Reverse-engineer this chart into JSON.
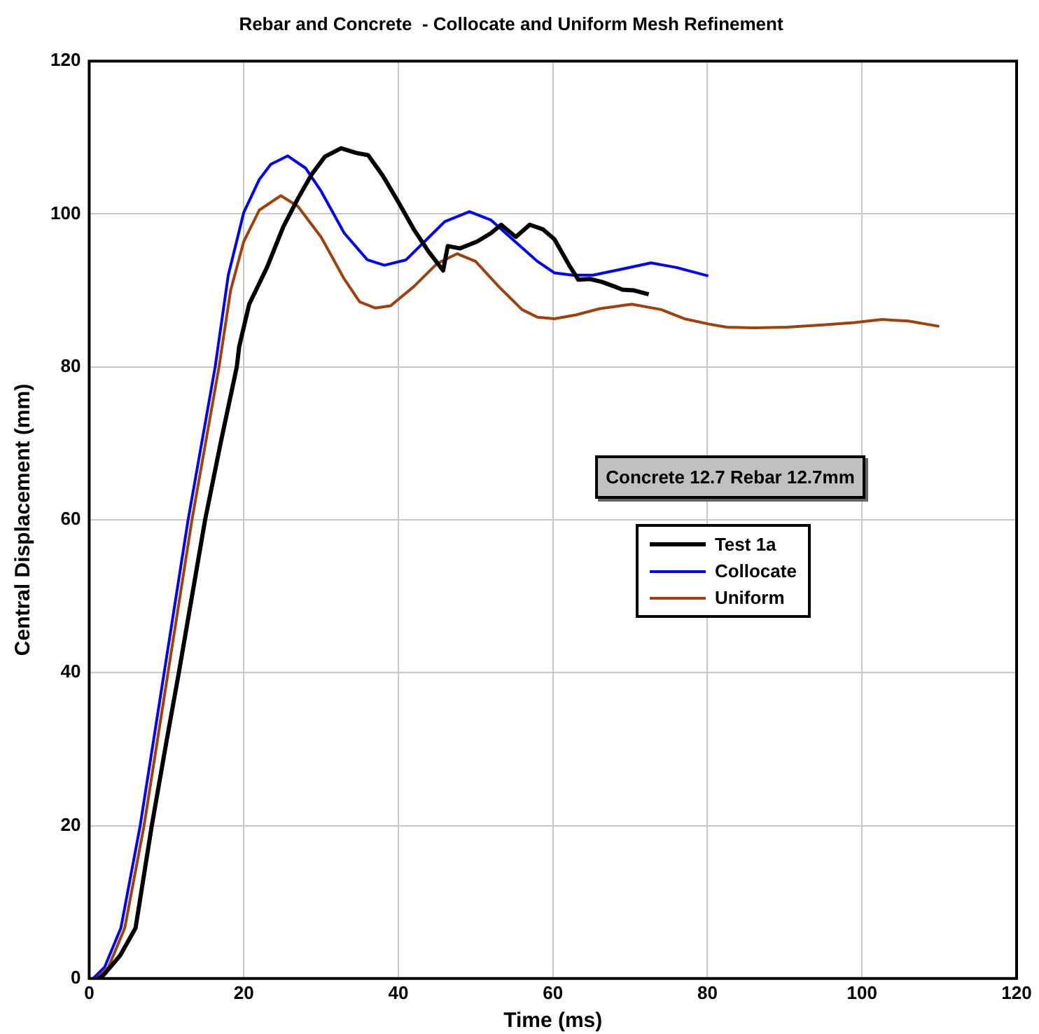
{
  "chart_data": {
    "type": "line",
    "title": "Rebar and Concrete  - Collocate and Uniform Mesh Refinement",
    "xlabel": "Time (ms)",
    "ylabel": "Central Displacement (mm)",
    "xlim": [
      0,
      120
    ],
    "ylim": [
      0,
      120
    ],
    "xticks": [
      0,
      20,
      40,
      60,
      80,
      100,
      120
    ],
    "yticks": [
      0,
      20,
      40,
      60,
      80,
      100,
      120
    ],
    "grid": true,
    "legend": "right",
    "marker": "none",
    "annotations": [
      "Concrete 12.7 Rebar 12.7mm"
    ],
    "series": [
      {
        "name": "Test 1a",
        "color": "#000000",
        "x": [
          1.2,
          1.9,
          4,
          6,
          8.1,
          10,
          11.6,
          13.3,
          15,
          17,
          19.1,
          19.4,
          20.7,
          23,
          25.1,
          27,
          28.8,
          30.5,
          32.6,
          34.5,
          36.1,
          38,
          40.1,
          42,
          43.9,
          45.8,
          46.4,
          48,
          50.2,
          52,
          53.3,
          55.2,
          57,
          58.7,
          60.2,
          62.1,
          63.3,
          64.8,
          66.4,
          68,
          69,
          70.5,
          72.4
        ],
        "values": [
          0,
          0.5,
          3,
          6.6,
          20,
          31,
          40,
          50,
          60,
          70,
          80,
          82.6,
          88.2,
          93,
          98.3,
          102,
          105.2,
          107.5,
          108.6,
          108,
          107.7,
          105,
          101.4,
          98,
          95.1,
          92.6,
          95.8,
          95.5,
          96.4,
          97.5,
          98.6,
          97,
          98.6,
          98,
          96.7,
          93.3,
          91.4,
          91.5,
          91.1,
          90.5,
          90.1,
          90,
          89.5
        ]
      },
      {
        "name": "Collocate",
        "color": "#0000ff",
        "x": [
          0.5,
          2,
          4.1,
          6.6,
          9.7,
          12.8,
          16.3,
          18,
          20,
          22,
          23.5,
          25.7,
          28,
          30,
          33,
          36,
          38.2,
          41,
          44,
          46,
          49.2,
          52,
          55,
          58,
          60.2,
          62.5,
          65.2,
          69,
          72.7,
          76,
          80.1
        ],
        "values": [
          0,
          1.5,
          6.6,
          20,
          40,
          60,
          80,
          92,
          100.2,
          104.5,
          106.5,
          107.6,
          106,
          103,
          97.5,
          94,
          93.3,
          94,
          97,
          99,
          100.3,
          99.2,
          96.5,
          93.8,
          92.3,
          92,
          92,
          92.8,
          93.6,
          93,
          91.9
        ]
      },
      {
        "name": "Uniform",
        "color": "#a0400a",
        "x": [
          1,
          2.5,
          4.6,
          7.1,
          10.2,
          13.3,
          16.8,
          18.3,
          20,
          22,
          24.8,
          27,
          30,
          33,
          35,
          37,
          39,
          42,
          45,
          47.6,
          50,
          53,
          56,
          58,
          60.2,
          63,
          66,
          70.2,
          74,
          77,
          80.2,
          82.5,
          86,
          90.3,
          95,
          99,
          102.6,
          106,
          110
        ],
        "values": [
          0,
          1.5,
          6.6,
          20,
          40,
          60,
          80,
          90,
          96.4,
          100.5,
          102.4,
          101,
          97,
          91.5,
          88.5,
          87.7,
          88,
          90.5,
          93.5,
          94.8,
          93.8,
          90.5,
          87.5,
          86.5,
          86.3,
          86.8,
          87.6,
          88.2,
          87.5,
          86.3,
          85.6,
          85.2,
          85.1,
          85.2,
          85.5,
          85.8,
          86.2,
          86,
          85.3
        ]
      }
    ]
  }
}
